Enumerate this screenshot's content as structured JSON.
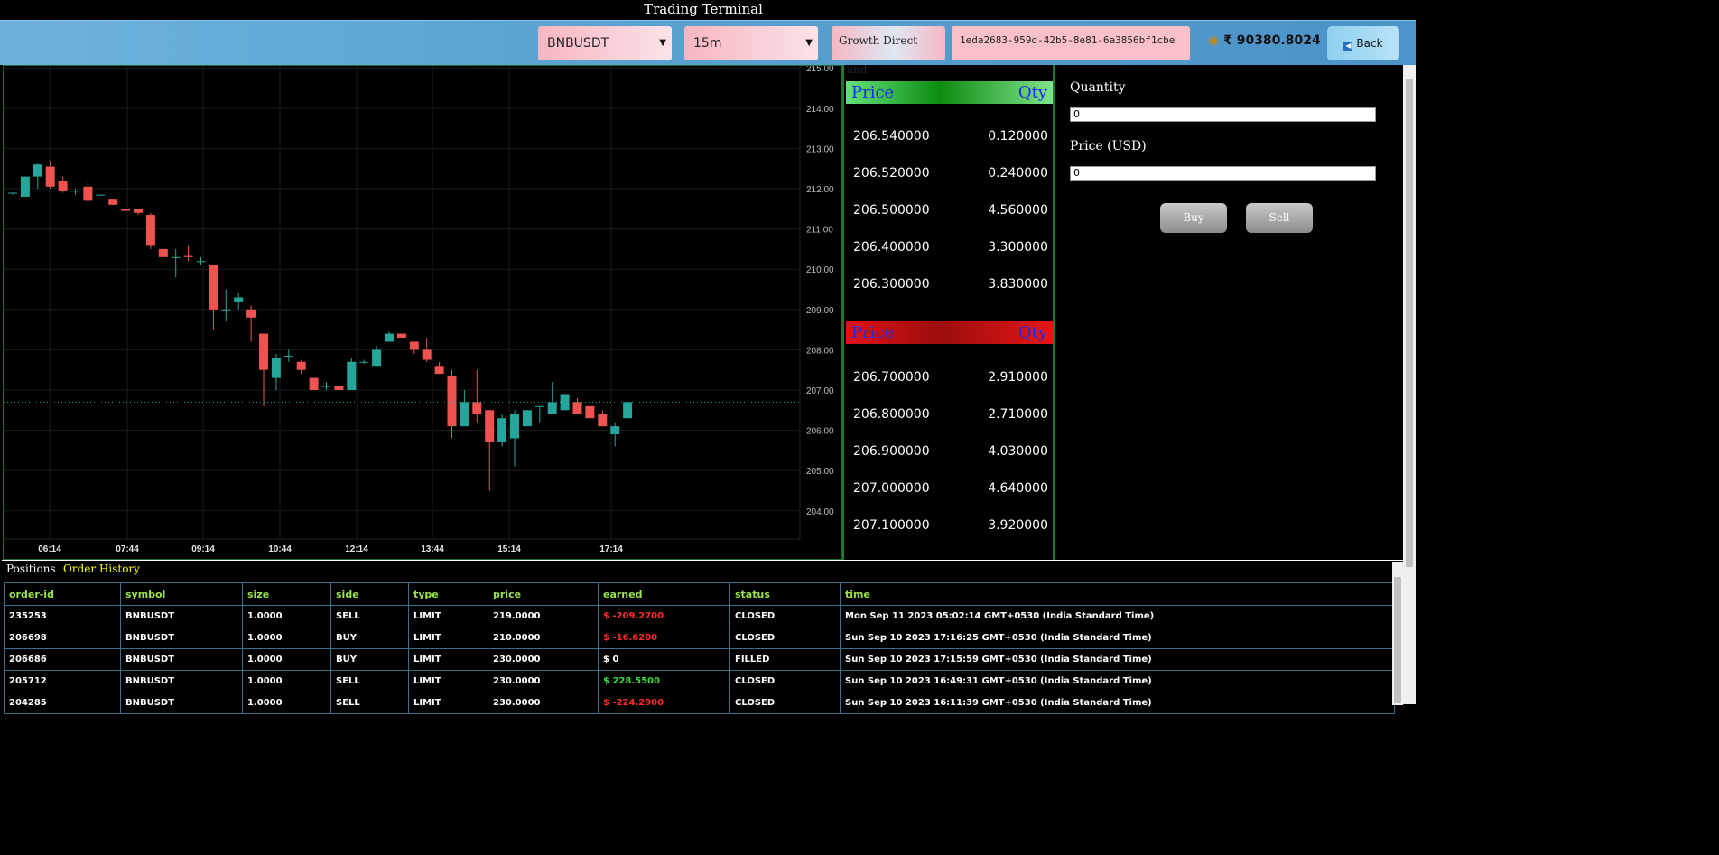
{
  "title": "Trading Terminal",
  "toolbar": {
    "symbol_select": "BNBUSDT",
    "interval_select": "15m",
    "fund_name": "Growth Direct Fund",
    "account_id": "1eda2683-959d-42b5-8e81-6a3856bf1cbe",
    "balance": "₹ 90380.8024",
    "back_label": "Back"
  },
  "chart_data": {
    "type": "candlestick",
    "x_ticks": [
      "06:14",
      "07:44",
      "09:14",
      "10:44",
      "12:14",
      "13:44",
      "15:14",
      "17:14"
    ],
    "y_ticks": [
      "204.00",
      "205.00",
      "206.00",
      "207.00",
      "208.00",
      "209.00",
      "210.00",
      "211.00",
      "212.00",
      "213.00",
      "214.00",
      "215.00"
    ],
    "ylim": [
      203.3,
      215.05
    ],
    "last_price": 206.7,
    "up_color": "#26a69a",
    "down_color": "#ef5350",
    "candles": [
      {
        "o": 211.9,
        "h": 211.9,
        "l": 211.85,
        "c": 211.9
      },
      {
        "o": 211.8,
        "h": 212.3,
        "l": 211.8,
        "c": 212.3
      },
      {
        "o": 212.3,
        "h": 212.65,
        "l": 212.0,
        "c": 212.6
      },
      {
        "o": 212.55,
        "h": 212.7,
        "l": 212.0,
        "c": 212.05
      },
      {
        "o": 212.2,
        "h": 212.3,
        "l": 211.9,
        "c": 211.95
      },
      {
        "o": 211.95,
        "h": 212.0,
        "l": 211.85,
        "c": 211.95
      },
      {
        "o": 212.05,
        "h": 212.2,
        "l": 211.75,
        "c": 211.7
      },
      {
        "o": 211.85,
        "h": 211.85,
        "l": 211.83,
        "c": 211.85
      },
      {
        "o": 211.75,
        "h": 211.75,
        "l": 211.6,
        "c": 211.6
      },
      {
        "o": 211.5,
        "h": 211.5,
        "l": 211.45,
        "c": 211.45
      },
      {
        "o": 211.5,
        "h": 211.5,
        "l": 211.35,
        "c": 211.4
      },
      {
        "o": 211.35,
        "h": 211.4,
        "l": 210.5,
        "c": 210.6
      },
      {
        "o": 210.5,
        "h": 210.5,
        "l": 210.3,
        "c": 210.3
      },
      {
        "o": 210.3,
        "h": 210.5,
        "l": 209.8,
        "c": 210.3
      },
      {
        "o": 210.35,
        "h": 210.6,
        "l": 210.2,
        "c": 210.3
      },
      {
        "o": 210.2,
        "h": 210.3,
        "l": 210.1,
        "c": 210.2
      },
      {
        "o": 210.1,
        "h": 210.1,
        "l": 208.5,
        "c": 209.0
      },
      {
        "o": 209.0,
        "h": 209.5,
        "l": 208.7,
        "c": 209.0
      },
      {
        "o": 209.2,
        "h": 209.4,
        "l": 209.0,
        "c": 209.3
      },
      {
        "o": 209.0,
        "h": 209.1,
        "l": 208.2,
        "c": 208.8
      },
      {
        "o": 208.4,
        "h": 208.4,
        "l": 206.6,
        "c": 207.5
      },
      {
        "o": 207.3,
        "h": 207.9,
        "l": 207.0,
        "c": 207.8
      },
      {
        "o": 207.85,
        "h": 208.0,
        "l": 207.7,
        "c": 207.85
      },
      {
        "o": 207.7,
        "h": 207.75,
        "l": 207.4,
        "c": 207.5
      },
      {
        "o": 207.3,
        "h": 207.3,
        "l": 207.0,
        "c": 207.0
      },
      {
        "o": 207.1,
        "h": 207.2,
        "l": 207.0,
        "c": 207.1
      },
      {
        "o": 207.1,
        "h": 207.1,
        "l": 207.0,
        "c": 207.0
      },
      {
        "o": 207.0,
        "h": 207.8,
        "l": 207.0,
        "c": 207.7
      },
      {
        "o": 207.7,
        "h": 207.75,
        "l": 207.65,
        "c": 207.7
      },
      {
        "o": 207.6,
        "h": 208.1,
        "l": 207.6,
        "c": 208.0
      },
      {
        "o": 208.2,
        "h": 208.45,
        "l": 208.2,
        "c": 208.4
      },
      {
        "o": 208.4,
        "h": 208.35,
        "l": 208.3,
        "c": 208.3
      },
      {
        "o": 208.2,
        "h": 208.2,
        "l": 207.9,
        "c": 208.0
      },
      {
        "o": 208.0,
        "h": 208.3,
        "l": 207.7,
        "c": 207.75
      },
      {
        "o": 207.6,
        "h": 207.7,
        "l": 207.4,
        "c": 207.4
      },
      {
        "o": 207.35,
        "h": 207.5,
        "l": 205.8,
        "c": 206.1
      },
      {
        "o": 206.1,
        "h": 207.0,
        "l": 206.1,
        "c": 206.7
      },
      {
        "o": 206.7,
        "h": 207.5,
        "l": 206.2,
        "c": 206.4
      },
      {
        "o": 206.5,
        "h": 206.5,
        "l": 204.5,
        "c": 205.7
      },
      {
        "o": 205.7,
        "h": 206.4,
        "l": 205.6,
        "c": 206.3
      },
      {
        "o": 205.8,
        "h": 206.5,
        "l": 205.1,
        "c": 206.4
      },
      {
        "o": 206.1,
        "h": 206.5,
        "l": 206.1,
        "c": 206.5
      },
      {
        "o": 206.6,
        "h": 206.6,
        "l": 206.2,
        "c": 206.6
      },
      {
        "o": 206.4,
        "h": 207.2,
        "l": 206.4,
        "c": 206.7
      },
      {
        "o": 206.5,
        "h": 206.9,
        "l": 206.5,
        "c": 206.9
      },
      {
        "o": 206.7,
        "h": 206.8,
        "l": 206.4,
        "c": 206.4
      },
      {
        "o": 206.6,
        "h": 206.65,
        "l": 206.3,
        "c": 206.3
      },
      {
        "o": 206.4,
        "h": 206.5,
        "l": 206.1,
        "c": 206.1
      },
      {
        "o": 205.9,
        "h": 206.2,
        "l": 205.6,
        "c": 206.1
      },
      {
        "o": 206.3,
        "h": 206.7,
        "l": 206.3,
        "c": 206.7
      }
    ]
  },
  "orderbook": {
    "bid_header": {
      "price": "Price",
      "qty": "Qty"
    },
    "bids": [
      {
        "price": "206.540000",
        "qty": "0.120000"
      },
      {
        "price": "206.520000",
        "qty": "0.240000"
      },
      {
        "price": "206.500000",
        "qty": "4.560000"
      },
      {
        "price": "206.400000",
        "qty": "3.300000"
      },
      {
        "price": "206.300000",
        "qty": "3.830000"
      }
    ],
    "ask_header": {
      "price": "Price",
      "qty": "Qty"
    },
    "asks": [
      {
        "price": "206.700000",
        "qty": "2.910000"
      },
      {
        "price": "206.800000",
        "qty": "2.710000"
      },
      {
        "price": "206.900000",
        "qty": "4.030000"
      },
      {
        "price": "207.000000",
        "qty": "4.640000"
      },
      {
        "price": "207.100000",
        "qty": "3.920000"
      }
    ]
  },
  "order_form": {
    "quantity_label": "Quantity",
    "quantity_value": "0",
    "price_label": "Price (USD)",
    "price_value": "0",
    "buy_label": "Buy",
    "sell_label": "Sell"
  },
  "tabs": {
    "positions": "Positions",
    "order_history": "Order History",
    "active_color": "#ffff00"
  },
  "orders_table": {
    "columns": [
      "order-id",
      "symbol",
      "size",
      "side",
      "type",
      "price",
      "earned",
      "status",
      "time"
    ],
    "rows": [
      [
        "235253",
        "BNBUSDT",
        "1.0000",
        "SELL",
        "LIMIT",
        "219.0000",
        "$ -209.2700",
        "CLOSED",
        "Mon Sep 11 2023 05:02:14 GMT+0530 (India Standard Time)"
      ],
      [
        "206698",
        "BNBUSDT",
        "1.0000",
        "BUY",
        "LIMIT",
        "210.0000",
        "$ -16.6200",
        "CLOSED",
        "Sun Sep 10 2023 17:16:25 GMT+0530 (India Standard Time)"
      ],
      [
        "206686",
        "BNBUSDT",
        "1.0000",
        "BUY",
        "LIMIT",
        "230.0000",
        "$ 0",
        "FILLED",
        "Sun Sep 10 2023 17:15:59 GMT+0530 (India Standard Time)"
      ],
      [
        "205712",
        "BNBUSDT",
        "1.0000",
        "SELL",
        "LIMIT",
        "230.0000",
        "$ 228.5500",
        "CLOSED",
        "Sun Sep 10 2023 16:49:31 GMT+0530 (India Standard Time)"
      ],
      [
        "204285",
        "BNBUSDT",
        "1.0000",
        "SELL",
        "LIMIT",
        "230.0000",
        "$ -224.2900",
        "CLOSED",
        "Sun Sep 10 2023 16:11:39 GMT+0530 (India Standard Time)"
      ]
    ]
  }
}
